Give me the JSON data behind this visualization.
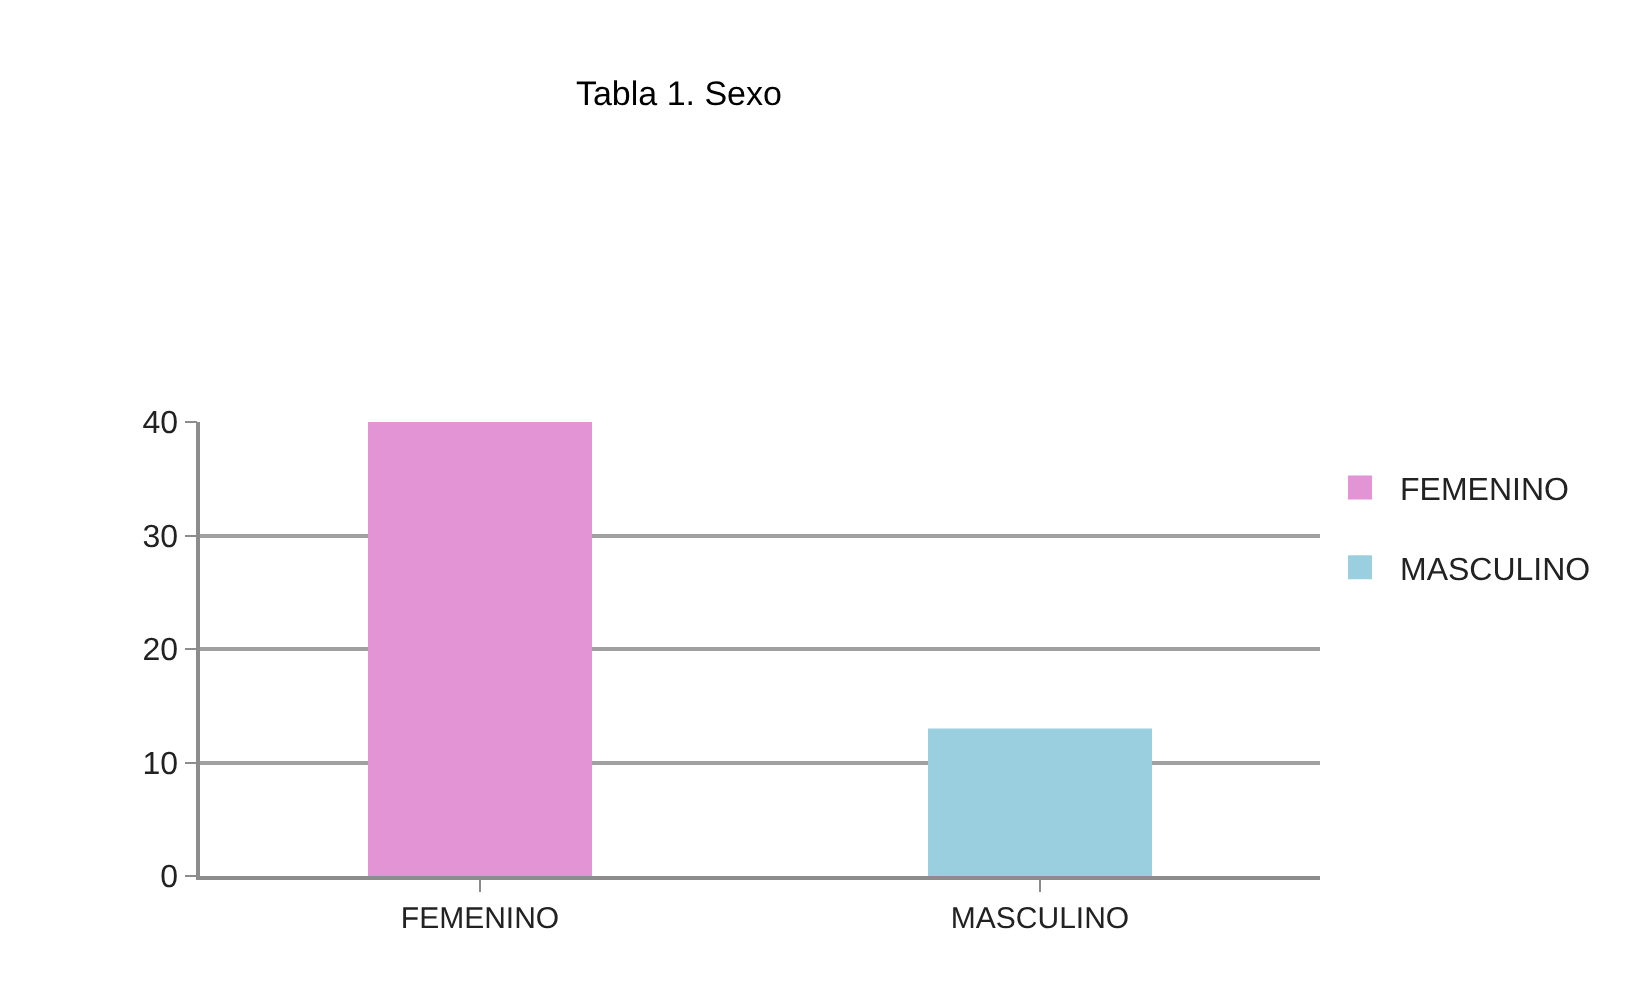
{
  "chart_data": {
    "type": "bar",
    "title": "Tabla 1. Sexo",
    "categories": [
      "FEMENINO",
      "MASCULINO"
    ],
    "series": [
      {
        "name": "FEMENINO",
        "color": "#e294d5",
        "values": [
          40,
          null
        ]
      },
      {
        "name": "MASCULINO",
        "color": "#9acfdf",
        "values": [
          null,
          13
        ]
      }
    ],
    "ylim": [
      0,
      40
    ],
    "yticks": [
      0,
      10,
      20,
      30,
      40
    ],
    "grid": "y",
    "legend": "right"
  }
}
